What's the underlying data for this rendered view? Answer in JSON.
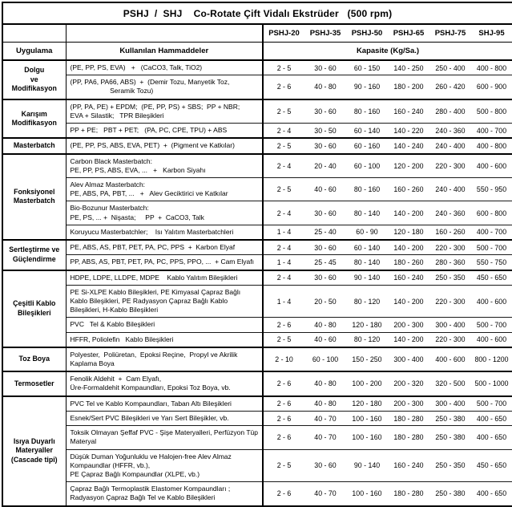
{
  "title": "PSHJ  /  SHJ    Co-Rotate Çift Vidalı Ekstrüder   (500 rpm)",
  "machine_columns": [
    "PSHJ-20",
    "PSHJ-35",
    "PSHJ-50",
    "PSHJ-65",
    "PSHJ-75",
    "SHJ-95"
  ],
  "column_titles": {
    "application": "Uygulama",
    "materials": "Kullanılan Hammaddeler",
    "capacity": "Kapasite (Kg/Sa.)"
  },
  "groups": [
    {
      "application": "Dolgu\nve\nModifikasyon",
      "rows": [
        {
          "materials": "(PE, PP, PS, EVA)   +   (CaCO3, Talk, TiO2)",
          "values": [
            "2 - 5",
            "30 - 60",
            "60 - 150",
            "140 - 250",
            "250 - 400",
            "400 - 800"
          ]
        },
        {
          "materials": "(PP, PA6, PA66, ABS)  +  (Demir Tozu, Manyetik Toz,\n                     Seramik Tozu)",
          "values": [
            "2 - 6",
            "40 - 80",
            "90 - 160",
            "180 - 200",
            "260 - 420",
            "600 - 900"
          ]
        }
      ]
    },
    {
      "application": "Karışım\nModifikasyon",
      "rows": [
        {
          "materials": "(PP, PA, PE) + EPDM;  (PE, PP, PS) + SBS;  PP + NBR;\nEVA + Silastik;   TPR Bileşikleri",
          "values": [
            "2 - 5",
            "30 - 60",
            "80 - 160",
            "160 - 240",
            "280 - 400",
            "500 - 800"
          ]
        },
        {
          "materials": "PP + PE;   PBT + PET;   (PA, PC, CPE, TPU) + ABS",
          "values": [
            "2 - 4",
            "30 - 50",
            "60 - 140",
            "140 - 220",
            "240 - 360",
            "400 - 700"
          ]
        }
      ]
    },
    {
      "application": "Masterbatch",
      "rows": [
        {
          "materials": "(PE, PP, PS, ABS, EVA, PET)  +  (Pigment ve Katkılar)",
          "values": [
            "2 - 5",
            "30 - 60",
            "60 - 160",
            "140 - 240",
            "240 - 400",
            "400 - 800"
          ]
        }
      ]
    },
    {
      "application": "Fonksiyonel\nMasterbatch",
      "rows": [
        {
          "materials": "Carbon Black Masterbatch:\nPE, PP, PS, ABS, EVA, ...   +   Karbon Siyahı",
          "values": [
            "2 - 4",
            "20 - 40",
            "60 - 100",
            "120 - 200",
            "220 - 300",
            "400 - 600"
          ]
        },
        {
          "materials": "Alev Almaz Masterbatch:\nPE, ABS, PA, PBT, ...   +   Alev Geciktirici ve Katkılar",
          "values": [
            "2 - 5",
            "40 - 60",
            "80 - 160",
            "160 - 260",
            "240 - 400",
            "550 - 950"
          ]
        },
        {
          "materials": "Bio-Bozunur Masterbatch:\nPE, PS, ... +  Nişasta;     PP  +  CaCO3, Talk",
          "values": [
            "2 - 4",
            "30 - 60",
            "80 - 140",
            "140 - 200",
            "240 - 360",
            "600 - 800"
          ]
        },
        {
          "materials": "Koruyucu Masterbatchler;    Isı Yalıtım Masterbatchleri",
          "values": [
            "1 - 4",
            "25 - 40",
            "60 - 90",
            "120 - 180",
            "160 - 260",
            "400 - 700"
          ]
        }
      ]
    },
    {
      "application": "Sertleştirme ve\nGüçlendirme",
      "rows": [
        {
          "materials": "PE, ABS, AS, PBT, PET, PA, PC, PPS  +  Karbon Elyaf",
          "values": [
            "2 - 4",
            "30 - 60",
            "60 - 140",
            "140 - 200",
            "220 - 300",
            "500 - 700"
          ]
        },
        {
          "materials": "PP, ABS, AS, PBT, PET, PA, PC, PPS, PPO, ...  + Cam Elyafı",
          "values": [
            "1 - 4",
            "25 - 45",
            "80 - 140",
            "180 - 260",
            "280 - 360",
            "550 - 750"
          ]
        }
      ]
    },
    {
      "application": "Çeşitli Kablo\nBileşikleri",
      "rows": [
        {
          "materials": "HDPE, LDPE, LLDPE, MDPE    Kablo Yalıtım Bileşikleri",
          "values": [
            "2 - 4",
            "30 - 60",
            "90 - 140",
            "160 - 240",
            "250 - 350",
            "450 - 650"
          ]
        },
        {
          "materials": "PE Si-XLPE Kablo Bileşikleri, PE Kimyasal Çapraz Bağlı Kablo Bileşikleri, PE Radyasyon Çapraz Bağlı Kablo Bileşikleri, H-Kablo Bileşikleri",
          "values": [
            "1 - 4",
            "20 - 50",
            "80 - 120",
            "140 - 200",
            "220 - 300",
            "400 - 600"
          ]
        },
        {
          "materials": "PVC   Tel & Kablo Bileşikleri",
          "values": [
            "2 - 6",
            "40 - 80",
            "120 - 180",
            "200 - 300",
            "300 - 400",
            "500 - 700"
          ]
        },
        {
          "materials": "HFFR, Poliolefin   Kablo Bileşikleri",
          "values": [
            "2 - 5",
            "40 - 60",
            "80 - 120",
            "140 - 200",
            "220 - 300",
            "400 - 600"
          ]
        }
      ]
    },
    {
      "application": "Toz Boya",
      "rows": [
        {
          "materials": "Polyester,  Poliüretan,  Epoksi Reçine,  Propyl ve Akrilik Kaplama Boya",
          "values": [
            "2 - 10",
            "60 - 100",
            "150 - 250",
            "300 - 400",
            "400 - 600",
            "800 - 1200"
          ]
        }
      ]
    },
    {
      "application": "Termosetler",
      "rows": [
        {
          "materials": "Fenolik Aldehit  +  Cam Elyafı,\nÜre-Formaldehit Kompaundları, Epoksi Toz Boya, vb.",
          "values": [
            "2 - 6",
            "40 - 80",
            "100 - 200",
            "200 - 320",
            "320 - 500",
            "500 - 1000"
          ]
        }
      ]
    },
    {
      "application": "Isıya Duyarlı\nMateryaller\n(Cascade tipi)",
      "rows": [
        {
          "materials": "PVC Tel ve Kablo Kompaundları, Taban Altı Bileşikleri",
          "values": [
            "2 - 6",
            "40 - 80",
            "120 - 180",
            "200 - 300",
            "300 - 400",
            "500 - 700"
          ]
        },
        {
          "materials": "Esnek/Sert PVC Bileşikleri ve Yarı Sert Bileşikler, vb.",
          "values": [
            "2 - 6",
            "40 - 70",
            "100 - 160",
            "180 - 280",
            "250 - 380",
            "400 - 650"
          ]
        },
        {
          "materials": "Toksik Olmayan Şeffaf PVC - Şişe Materyalleri, Perfüzyon Tüp Materyal",
          "values": [
            "2 - 6",
            "40 - 70",
            "100 - 160",
            "180 - 280",
            "250 - 380",
            "400 - 650"
          ]
        },
        {
          "materials": "Düşük Duman Yoğunluklu ve Halojen-free Alev Almaz Kompaundlar (HFFR, vb.),\nPE Çapraz Bağlı Kompaundlar (XLPE, vb.)",
          "values": [
            "2 - 5",
            "30 - 60",
            "90 - 140",
            "160 - 240",
            "250 - 350",
            "450 - 650"
          ]
        },
        {
          "materials": "Çapraz Bağlı Termoplastik Elastomer Kompaundları ; Radyasyon Çapraz Bağlı Tel ve Kablo Bileşikleri",
          "values": [
            "2 - 6",
            "40 - 70",
            "100 - 160",
            "180 - 280",
            "250 - 380",
            "400 - 650"
          ]
        }
      ]
    }
  ]
}
